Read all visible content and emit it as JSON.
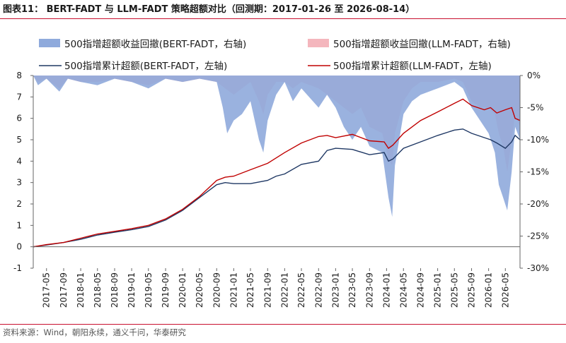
{
  "title": "图表11： BERT-FADT 与 LLM-FADT 策略超额对比（回测期：2017-01-26 至 2026-08-14）",
  "source": "资料来源：Wind，朝阳永续，通义千问，华泰研究",
  "colors": {
    "bert_line": "#1f3864",
    "llm_line": "#c00000",
    "bert_dd": "#8faadc",
    "llm_dd": "#f4b6bd",
    "rule": "#c8102e"
  },
  "chart_data": {
    "type": "line+area",
    "y_left": {
      "range": [
        -1,
        8
      ],
      "ticks": [
        -1,
        0,
        1,
        2,
        3,
        4,
        5,
        6,
        7,
        8
      ]
    },
    "y_right": {
      "range": [
        -30,
        0
      ],
      "ticks": [
        "0%",
        "-5%",
        "-10%",
        "-15%",
        "-20%",
        "-25%",
        "-30%"
      ],
      "values": [
        0,
        -5,
        -10,
        -15,
        -20,
        -25,
        -30
      ]
    },
    "x_ticks": [
      "2017-01",
      "2017-05",
      "2017-09",
      "2018-01",
      "2018-05",
      "2018-09",
      "2019-01",
      "2019-05",
      "2019-09",
      "2020-01",
      "2020-05",
      "2020-09",
      "2021-01",
      "2021-05",
      "2021-09",
      "2022-01",
      "2022-05",
      "2022-09",
      "2023-01",
      "2023-05",
      "2023-09",
      "2024-01",
      "2024-05",
      "2024-09",
      "2025-01",
      "2025-05",
      "2025-09",
      "2026-01",
      "2026-05"
    ],
    "x_range": [
      "2017-01-26",
      "2026-08-14"
    ],
    "legend": [
      {
        "label": "500指增超额收益回撤(BERT-FADT，右轴)",
        "kind": "area",
        "series": "bert_drawdown"
      },
      {
        "label": "500指增超额收益回撤(LLM-FADT，右轴)",
        "kind": "area",
        "series": "llm_drawdown"
      },
      {
        "label": "500指增累计超额(BERT-FADT，左轴)",
        "kind": "line",
        "series": "bert_cum"
      },
      {
        "label": "500指增累计超额(LLM-FADT，左轴)",
        "kind": "line",
        "series": "llm_cum"
      }
    ],
    "series": {
      "bert_cum": [
        [
          "2017-01-26",
          0
        ],
        [
          "2017-05-01",
          0.08
        ],
        [
          "2017-09-01",
          0.2
        ],
        [
          "2018-01-01",
          0.35
        ],
        [
          "2018-05-01",
          0.55
        ],
        [
          "2018-09-01",
          0.68
        ],
        [
          "2019-01-01",
          0.8
        ],
        [
          "2019-05-01",
          0.95
        ],
        [
          "2019-09-01",
          1.25
        ],
        [
          "2020-01-01",
          1.7
        ],
        [
          "2020-05-01",
          2.3
        ],
        [
          "2020-09-01",
          2.9
        ],
        [
          "2020-11-01",
          3.0
        ],
        [
          "2021-01-01",
          2.95
        ],
        [
          "2021-05-01",
          2.95
        ],
        [
          "2021-09-01",
          3.1
        ],
        [
          "2021-11-01",
          3.3
        ],
        [
          "2022-01-01",
          3.4
        ],
        [
          "2022-05-01",
          3.85
        ],
        [
          "2022-09-01",
          4.0
        ],
        [
          "2022-11-01",
          4.5
        ],
        [
          "2023-01-01",
          4.6
        ],
        [
          "2023-05-01",
          4.55
        ],
        [
          "2023-09-01",
          4.3
        ],
        [
          "2023-12-15",
          4.4
        ],
        [
          "2024-01-15",
          4.0
        ],
        [
          "2024-02-15",
          4.1
        ],
        [
          "2024-05-01",
          4.6
        ],
        [
          "2024-09-01",
          4.9
        ],
        [
          "2025-01-01",
          5.2
        ],
        [
          "2025-05-01",
          5.45
        ],
        [
          "2025-07-01",
          5.5
        ],
        [
          "2025-09-01",
          5.3
        ],
        [
          "2025-12-01",
          5.1
        ],
        [
          "2026-01-15",
          5.0
        ],
        [
          "2026-03-01",
          4.85
        ],
        [
          "2026-05-01",
          4.6
        ],
        [
          "2026-06-15",
          4.9
        ],
        [
          "2026-07-10",
          5.2
        ],
        [
          "2026-08-14",
          5.0
        ]
      ],
      "llm_cum": [
        [
          "2017-01-26",
          0
        ],
        [
          "2017-05-01",
          0.1
        ],
        [
          "2017-09-01",
          0.2
        ],
        [
          "2018-01-01",
          0.4
        ],
        [
          "2018-05-01",
          0.6
        ],
        [
          "2018-09-01",
          0.72
        ],
        [
          "2019-01-01",
          0.85
        ],
        [
          "2019-05-01",
          1.0
        ],
        [
          "2019-09-01",
          1.3
        ],
        [
          "2020-01-01",
          1.75
        ],
        [
          "2020-05-01",
          2.35
        ],
        [
          "2020-09-01",
          3.1
        ],
        [
          "2020-11-01",
          3.25
        ],
        [
          "2021-01-01",
          3.3
        ],
        [
          "2021-05-01",
          3.6
        ],
        [
          "2021-09-01",
          3.9
        ],
        [
          "2022-01-01",
          4.4
        ],
        [
          "2022-05-01",
          4.85
        ],
        [
          "2022-09-01",
          5.15
        ],
        [
          "2022-11-01",
          5.2
        ],
        [
          "2023-01-01",
          5.1
        ],
        [
          "2023-05-01",
          5.25
        ],
        [
          "2023-09-01",
          4.95
        ],
        [
          "2023-12-15",
          4.9
        ],
        [
          "2024-01-15",
          4.6
        ],
        [
          "2024-02-15",
          4.75
        ],
        [
          "2024-05-01",
          5.3
        ],
        [
          "2024-09-01",
          5.9
        ],
        [
          "2025-01-01",
          6.3
        ],
        [
          "2025-05-01",
          6.7
        ],
        [
          "2025-07-01",
          6.9
        ],
        [
          "2025-09-01",
          6.6
        ],
        [
          "2025-12-01",
          6.4
        ],
        [
          "2026-01-15",
          6.5
        ],
        [
          "2026-03-01",
          6.25
        ],
        [
          "2026-05-01",
          6.4
        ],
        [
          "2026-06-15",
          6.5
        ],
        [
          "2026-07-10",
          6.0
        ],
        [
          "2026-08-14",
          5.9
        ]
      ],
      "bert_drawdown": [
        [
          "2017-01-26",
          0
        ],
        [
          "2017-03-01",
          -1.5
        ],
        [
          "2017-05-01",
          -0.5
        ],
        [
          "2017-08-01",
          -2.5
        ],
        [
          "2017-10-01",
          -0.5
        ],
        [
          "2018-01-01",
          -1
        ],
        [
          "2018-05-01",
          -1.5
        ],
        [
          "2018-09-01",
          -0.5
        ],
        [
          "2019-01-01",
          -1
        ],
        [
          "2019-05-01",
          -2
        ],
        [
          "2019-09-01",
          -0.5
        ],
        [
          "2020-01-01",
          -1
        ],
        [
          "2020-05-01",
          -0.5
        ],
        [
          "2020-09-01",
          -1
        ],
        [
          "2020-10-15",
          -5
        ],
        [
          "2020-11-15",
          -9
        ],
        [
          "2021-01-01",
          -7
        ],
        [
          "2021-03-01",
          -6
        ],
        [
          "2021-05-01",
          -4
        ],
        [
          "2021-07-01",
          -10
        ],
        [
          "2021-08-01",
          -12
        ],
        [
          "2021-09-01",
          -7
        ],
        [
          "2021-11-01",
          -3
        ],
        [
          "2022-01-01",
          -1
        ],
        [
          "2022-03-01",
          -4
        ],
        [
          "2022-05-01",
          -2
        ],
        [
          "2022-09-01",
          -5
        ],
        [
          "2022-11-01",
          -3
        ],
        [
          "2023-01-01",
          -5
        ],
        [
          "2023-03-01",
          -8
        ],
        [
          "2023-05-01",
          -10
        ],
        [
          "2023-07-01",
          -8
        ],
        [
          "2023-09-01",
          -11
        ],
        [
          "2023-12-01",
          -12
        ],
        [
          "2024-01-15",
          -19
        ],
        [
          "2024-02-10",
          -22
        ],
        [
          "2024-03-01",
          -14
        ],
        [
          "2024-05-01",
          -6
        ],
        [
          "2024-07-01",
          -4
        ],
        [
          "2024-09-01",
          -3
        ],
        [
          "2025-01-01",
          -2
        ],
        [
          "2025-05-01",
          -1
        ],
        [
          "2025-07-01",
          -2
        ],
        [
          "2025-09-01",
          -5
        ],
        [
          "2025-11-01",
          -7
        ],
        [
          "2026-01-01",
          -9
        ],
        [
          "2026-02-15",
          -12
        ],
        [
          "2026-03-15",
          -17
        ],
        [
          "2026-04-15",
          -19
        ],
        [
          "2026-05-15",
          -21
        ],
        [
          "2026-06-15",
          -15
        ],
        [
          "2026-07-10",
          -8
        ],
        [
          "2026-08-14",
          -10
        ]
      ],
      "llm_drawdown": [
        [
          "2017-01-26",
          0
        ],
        [
          "2017-03-01",
          -1
        ],
        [
          "2017-05-01",
          -0.5
        ],
        [
          "2017-08-01",
          -2
        ],
        [
          "2017-10-01",
          -0.5
        ],
        [
          "2018-01-01",
          -1
        ],
        [
          "2018-05-01",
          -1
        ],
        [
          "2018-09-01",
          -0.5
        ],
        [
          "2019-01-01",
          -1
        ],
        [
          "2019-05-01",
          -1.5
        ],
        [
          "2019-09-01",
          -0.5
        ],
        [
          "2020-01-01",
          -1
        ],
        [
          "2020-05-01",
          -0.5
        ],
        [
          "2020-09-01",
          -1
        ],
        [
          "2020-11-01",
          -2
        ],
        [
          "2021-01-01",
          -3
        ],
        [
          "2021-03-01",
          -2
        ],
        [
          "2021-05-01",
          -1
        ],
        [
          "2021-07-01",
          -4
        ],
        [
          "2021-08-01",
          -6
        ],
        [
          "2021-09-01",
          -3
        ],
        [
          "2021-11-01",
          -1
        ],
        [
          "2022-01-01",
          -1
        ],
        [
          "2022-03-01",
          -2
        ],
        [
          "2022-05-01",
          -1
        ],
        [
          "2022-09-01",
          -2
        ],
        [
          "2022-11-01",
          -3
        ],
        [
          "2023-01-01",
          -4
        ],
        [
          "2023-03-01",
          -5
        ],
        [
          "2023-05-01",
          -6
        ],
        [
          "2023-07-01",
          -5
        ],
        [
          "2023-09-01",
          -8
        ],
        [
          "2023-12-01",
          -9
        ],
        [
          "2024-01-15",
          -13
        ],
        [
          "2024-02-10",
          -14
        ],
        [
          "2024-03-01",
          -9
        ],
        [
          "2024-05-01",
          -4
        ],
        [
          "2024-07-01",
          -2
        ],
        [
          "2024-09-01",
          -1
        ],
        [
          "2025-01-01",
          -1
        ],
        [
          "2025-05-01",
          -0.5
        ],
        [
          "2025-07-01",
          -1
        ],
        [
          "2025-09-01",
          -4
        ],
        [
          "2025-11-01",
          -5
        ],
        [
          "2026-01-01",
          -5
        ],
        [
          "2026-02-15",
          -6
        ],
        [
          "2026-03-15",
          -9
        ],
        [
          "2026-04-15",
          -11
        ],
        [
          "2026-05-15",
          -15
        ],
        [
          "2026-06-15",
          -10
        ],
        [
          "2026-07-10",
          -6
        ],
        [
          "2026-08-14",
          -8
        ]
      ]
    }
  }
}
